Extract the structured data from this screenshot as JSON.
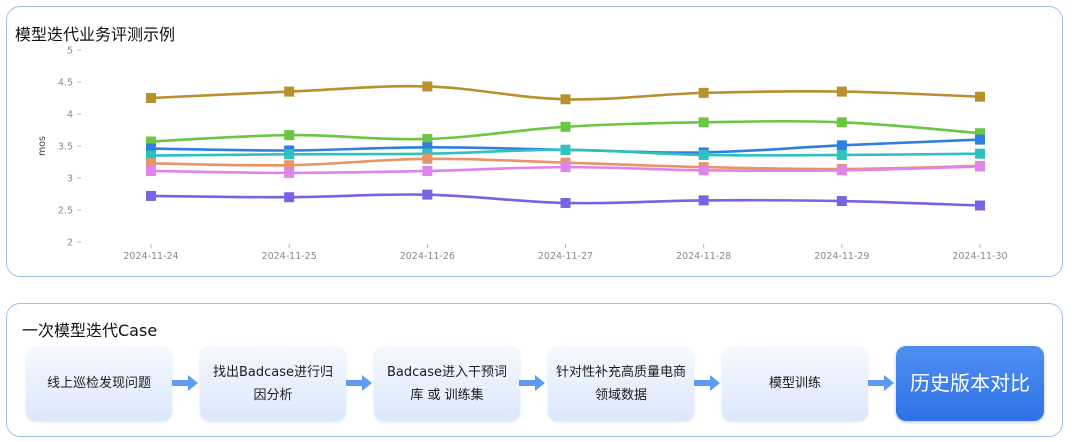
{
  "chart_section": {
    "title": "模型迭代业务评测示例"
  },
  "chart_data": {
    "type": "line",
    "title": "模型迭代业务评测示例",
    "xlabel": "",
    "ylabel": "mos",
    "categories": [
      "2024-11-24",
      "2024-11-25",
      "2024-11-26",
      "2024-11-27",
      "2024-11-28",
      "2024-11-29",
      "2024-11-30"
    ],
    "yticks": [
      "2",
      "2.5",
      "3",
      "3.5",
      "4",
      "4.5",
      "5"
    ],
    "ylim": [
      2,
      5
    ],
    "grid": false,
    "legend": "none",
    "series": [
      {
        "color": "#b8902e",
        "values": [
          4.25,
          4.35,
          4.43,
          4.23,
          4.33,
          4.35,
          4.27
        ]
      },
      {
        "color": "#6cc644",
        "values": [
          3.57,
          3.67,
          3.61,
          3.8,
          3.87,
          3.87,
          3.7
        ]
      },
      {
        "color": "#2f80e0",
        "values": [
          3.46,
          3.43,
          3.48,
          3.44,
          3.4,
          3.51,
          3.6
        ]
      },
      {
        "color": "#2fc1bd",
        "values": [
          3.35,
          3.37,
          3.38,
          3.44,
          3.36,
          3.36,
          3.38
        ]
      },
      {
        "color": "#e99468",
        "values": [
          3.23,
          3.2,
          3.3,
          3.24,
          3.17,
          3.14,
          3.19
        ]
      },
      {
        "color": "#de84ea",
        "values": [
          3.11,
          3.08,
          3.11,
          3.17,
          3.12,
          3.12,
          3.18
        ]
      },
      {
        "color": "#7a63e0",
        "values": [
          2.72,
          2.7,
          2.74,
          2.61,
          2.65,
          2.64,
          2.57
        ]
      }
    ]
  },
  "flow_section": {
    "title": "一次模型迭代Case",
    "steps": [
      {
        "label": "线上巡检发现问题"
      },
      {
        "label": "找出Badcase进行归因分析"
      },
      {
        "label": "Badcase进入干预词库 或 训练集"
      },
      {
        "label": "针对性补充高质量电商领域数据"
      },
      {
        "label": "模型训练"
      },
      {
        "label": "历史版本对比"
      }
    ],
    "colors": {
      "arrow": "#5d9cf2",
      "final_step": "#3a7bed"
    }
  }
}
